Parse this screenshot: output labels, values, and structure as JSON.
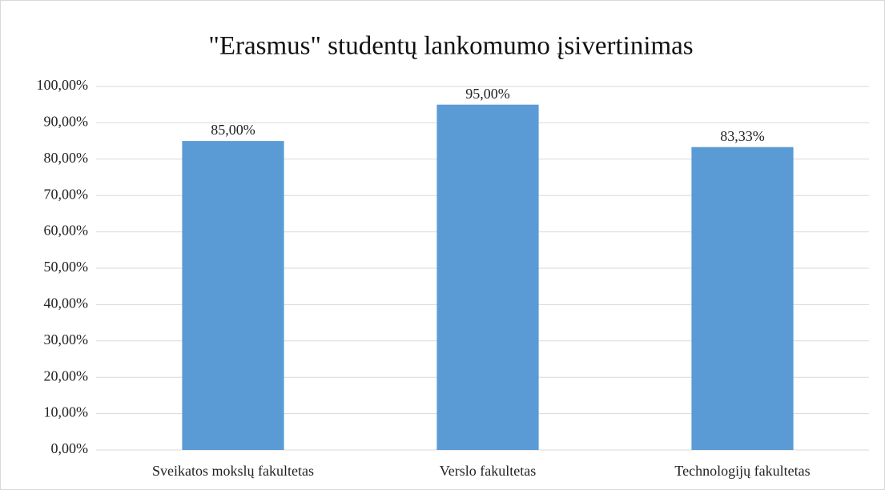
{
  "chart_data": {
    "type": "bar",
    "title": "\"Erasmus\" studentų lankomumo įsivertinimas",
    "categories": [
      "Sveikatos mokslų fakultetas",
      "Verslo fakultetas",
      "Technologijų fakultetas"
    ],
    "values": [
      85,
      95,
      83.33
    ],
    "value_labels": [
      "85,00%",
      "95,00%",
      "83,33%"
    ],
    "color": "#5b9bd5",
    "ylim": [
      0,
      100
    ],
    "yticks": [
      {
        "value": 0,
        "label": "0,00%"
      },
      {
        "value": 10,
        "label": "10,00%"
      },
      {
        "value": 20,
        "label": "20,00%"
      },
      {
        "value": 30,
        "label": "30,00%"
      },
      {
        "value": 40,
        "label": "40,00%"
      },
      {
        "value": 50,
        "label": "50,00%"
      },
      {
        "value": 60,
        "label": "60,00%"
      },
      {
        "value": 70,
        "label": "70,00%"
      },
      {
        "value": 80,
        "label": "80,00%"
      },
      {
        "value": 90,
        "label": "90,00%"
      },
      {
        "value": 100,
        "label": "100,00%"
      }
    ],
    "grid": true
  }
}
